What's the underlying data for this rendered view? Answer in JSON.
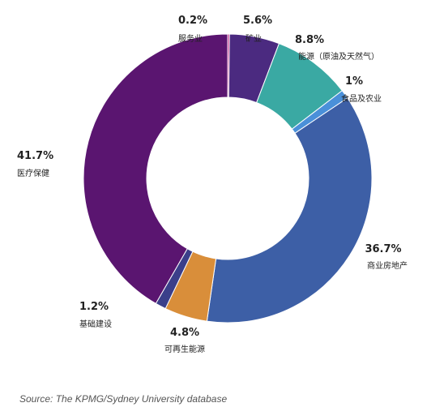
{
  "chart_data": {
    "type": "pie",
    "subtype": "donut",
    "categories": [
      "服务业",
      "矿业",
      "能源（原油及天然气）",
      "食品及农业",
      "商业房地产",
      "可再生能源",
      "基础建设",
      "医疗保健"
    ],
    "values": [
      0.2,
      5.6,
      8.8,
      1,
      36.7,
      4.8,
      1.2,
      41.7
    ],
    "value_labels": [
      "0.2%",
      "5.6%",
      "8.8%",
      "1%",
      "36.7%",
      "4.8%",
      "1.2%",
      "41.7%"
    ],
    "colors": [
      "#c0187e",
      "#4b2a80",
      "#3aa9a3",
      "#4a90d9",
      "#3d5fa6",
      "#d98e3a",
      "#3b3f8a",
      "#5a1570"
    ],
    "legend": "none"
  },
  "source": "Source: The KPMG/Sydney University database"
}
